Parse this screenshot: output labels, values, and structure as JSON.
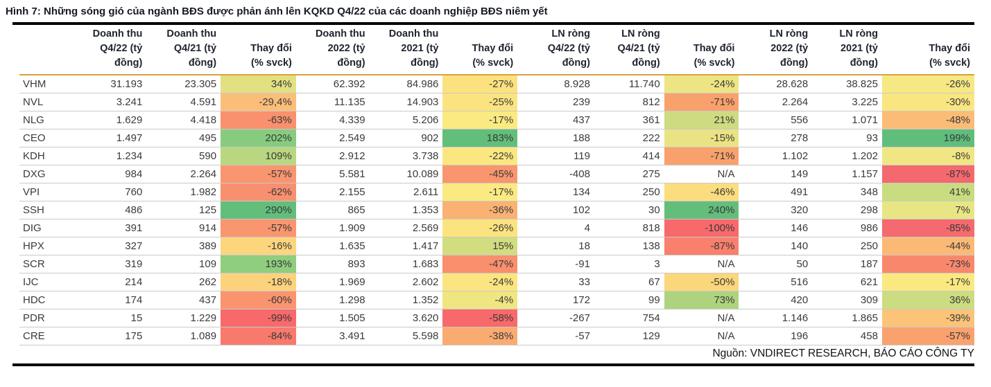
{
  "page": {
    "title": "Hình 7: Những sóng gió của ngành BĐS được phản ánh lên KQKD Q4/22 của các doanh nghiệp BĐS niêm yết",
    "source_note": "Nguồn: VNDIRECT RESEARCH, BÁO CÁO CÔNG TY"
  },
  "colors": {
    "rule_black": "#000000",
    "header_underline_gold": "#D9A13A",
    "row_divider_gray": "#C9C9C9",
    "scale_min_red": "#F8696B",
    "scale_mid_yellow": "#FFEB84",
    "scale_max_green": "#63BE7B",
    "na_cell_white": "#FFFFFF",
    "text_dark": "#3A3A3A"
  },
  "chart_data": {
    "type": "table",
    "title": "Hình 7: Những sóng gió của ngành BĐS được phản ánh lên KQKD Q4/22 của các doanh nghiệp BĐS niêm yết",
    "source_note": "Nguồn: VNDIRECT RESEARCH, BÁO CÁO CÔNG TY",
    "columns": [
      {
        "key": "ticker",
        "lines": []
      },
      {
        "key": "rev-q4-22",
        "lines": [
          "Doanh thu",
          "Q4/22 (tỷ",
          "đồng)"
        ]
      },
      {
        "key": "rev-q4-21",
        "lines": [
          "Doanh thu",
          "Q4/21 (tỷ",
          "đồng)"
        ]
      },
      {
        "key": "rev-q4-change",
        "lines": [
          "Thay đổi",
          "(% svck)"
        ]
      },
      {
        "key": "rev-2022",
        "lines": [
          "Doanh thu",
          "2022 (tỷ",
          "đồng)"
        ]
      },
      {
        "key": "rev-2021",
        "lines": [
          "Doanh thu",
          "2021 (tỷ",
          "đồng)"
        ]
      },
      {
        "key": "rev-fy-change",
        "lines": [
          "Thay đổi",
          "(% svck)"
        ]
      },
      {
        "key": "np-q4-22",
        "lines": [
          "LN ròng",
          "Q4/22 (tỷ",
          "đồng)"
        ]
      },
      {
        "key": "np-q4-21",
        "lines": [
          "LN ròng",
          "Q4/21 (tỷ",
          "đồng)"
        ]
      },
      {
        "key": "np-q4-change",
        "lines": [
          "Thay đổi",
          "(% svck)"
        ]
      },
      {
        "key": "np-2022",
        "lines": [
          "LN ròng",
          "2022 (tỷ",
          "đồng)"
        ]
      },
      {
        "key": "np-2021",
        "lines": [
          "LN ròng",
          "2021 (tỷ",
          "đồng)"
        ]
      },
      {
        "key": "np-fy-change",
        "lines": [
          "Thay đổi",
          "(% svck)"
        ]
      }
    ],
    "change_col_indexes": [
      2,
      5,
      8,
      11
    ],
    "rows": [
      {
        "ticker": "VHM",
        "values": [
          "31.193",
          "23.305",
          "34%",
          "62.392",
          "84.986",
          "-27%",
          "8.928",
          "11.740",
          "-24%",
          "28.628",
          "38.825",
          "-26%"
        ],
        "change_colors": [
          "#E2E081",
          "#FBE27E",
          "#EDE583",
          "#F6E883"
        ]
      },
      {
        "ticker": "NVL",
        "values": [
          "3.241",
          "4.591",
          "-29,4%",
          "11.135",
          "14.903",
          "-25%",
          "239",
          "812",
          "-71%",
          "2.264",
          "3.225",
          "-30%"
        ],
        "change_colors": [
          "#FBBE79",
          "#FBE480",
          "#F9A16C",
          "#FAE681"
        ]
      },
      {
        "ticker": "NLG",
        "values": [
          "1.629",
          "4.418",
          "-63%",
          "4.339",
          "5.206",
          "-17%",
          "437",
          "361",
          "21%",
          "556",
          "1.071",
          "-48%"
        ],
        "change_colors": [
          "#F9906E",
          "#FAEA81",
          "#CEDB81",
          "#FBBC77"
        ]
      },
      {
        "ticker": "CEO",
        "values": [
          "1.497",
          "495",
          "202%",
          "2.549",
          "902",
          "183%",
          "188",
          "222",
          "-15%",
          "278",
          "93",
          "199%"
        ],
        "change_colors": [
          "#87CC7E",
          "#63BE7B",
          "#EAE383",
          "#5FBE7C"
        ]
      },
      {
        "ticker": "KDH",
        "values": [
          "1.234",
          "590",
          "109%",
          "2.912",
          "3.738",
          "-22%",
          "119",
          "414",
          "-71%",
          "1.102",
          "1.202",
          "-8%"
        ],
        "change_colors": [
          "#B9D780",
          "#FBE780",
          "#F9A16C",
          "#F0E683"
        ]
      },
      {
        "ticker": "DXG",
        "values": [
          "984",
          "2.264",
          "-57%",
          "5.581",
          "10.089",
          "-45%",
          "-408",
          "275",
          "N/A",
          "149",
          "1.157",
          "-87%"
        ],
        "change_colors": [
          "#F9956F",
          "#F9966E",
          "#FFFFFF",
          "#F4696E"
        ]
      },
      {
        "ticker": "VPI",
        "values": [
          "760",
          "1.982",
          "-62%",
          "2.155",
          "2.611",
          "-17%",
          "134",
          "250",
          "-46%",
          "491",
          "348",
          "41%"
        ],
        "change_colors": [
          "#F89070",
          "#FAEA81",
          "#FBDD7D",
          "#C9DC80"
        ]
      },
      {
        "ticker": "SSH",
        "values": [
          "486",
          "125",
          "290%",
          "865",
          "1.353",
          "-36%",
          "102",
          "30",
          "240%",
          "320",
          "298",
          "7%"
        ],
        "change_colors": [
          "#63BE7B",
          "#FAB273",
          "#63BE7B",
          "#E8E684"
        ]
      },
      {
        "ticker": "DIG",
        "values": [
          "391",
          "914",
          "-57%",
          "1.909",
          "2.569",
          "-26%",
          "4",
          "818",
          "-100%",
          "146",
          "986",
          "-85%"
        ],
        "change_colors": [
          "#F9956F",
          "#FBE37F",
          "#F8696B",
          "#F56A6E"
        ]
      },
      {
        "ticker": "HPX",
        "values": [
          "327",
          "389",
          "-16%",
          "1.635",
          "1.417",
          "15%",
          "18",
          "138",
          "-87%",
          "140",
          "250",
          "-44%"
        ],
        "change_colors": [
          "#FCD57D",
          "#D2DD80",
          "#F8806C",
          "#FBB976"
        ]
      },
      {
        "ticker": "SCR",
        "values": [
          "319",
          "109",
          "193%",
          "893",
          "1.683",
          "-47%",
          "-91",
          "3",
          "N/A",
          "50",
          "187",
          "-73%"
        ],
        "change_colors": [
          "#8ECE7E",
          "#F98F6D",
          "#FFFFFF",
          "#F8886D"
        ]
      },
      {
        "ticker": "IJC",
        "values": [
          "214",
          "262",
          "-18%",
          "1.969",
          "2.602",
          "-24%",
          "33",
          "67",
          "-50%",
          "516",
          "621",
          "-17%"
        ],
        "change_colors": [
          "#FCD27C",
          "#FBE580",
          "#FBD77B",
          "#FAE981"
        ]
      },
      {
        "ticker": "HDC",
        "values": [
          "174",
          "437",
          "-60%",
          "1.298",
          "1.352",
          "-4%",
          "172",
          "99",
          "73%",
          "420",
          "309",
          "36%"
        ],
        "change_colors": [
          "#F9946E",
          "#EFE682",
          "#AED37F",
          "#CCDC80"
        ]
      },
      {
        "ticker": "PDR",
        "values": [
          "15",
          "1.229",
          "-99%",
          "1.505",
          "3.620",
          "-58%",
          "-267",
          "754",
          "N/A",
          "1.146",
          "1.865",
          "-39%"
        ],
        "change_colors": [
          "#F8696B",
          "#F8696B",
          "#FFFFFF",
          "#FBC478"
        ]
      },
      {
        "ticker": "CRE",
        "values": [
          "175",
          "1.089",
          "-84%",
          "3.491",
          "5.598",
          "-38%",
          "-57",
          "129",
          "N/A",
          "196",
          "458",
          "-57%"
        ],
        "change_colors": [
          "#F87A6D",
          "#FAAB71",
          "#FFFFFF",
          "#FAA26F"
        ]
      }
    ]
  }
}
